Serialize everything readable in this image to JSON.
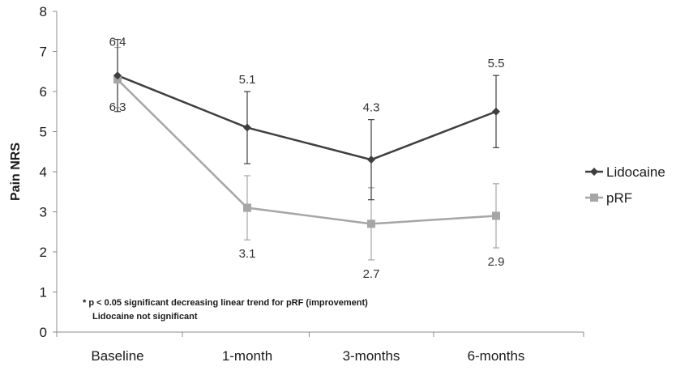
{
  "chart_data": {
    "type": "line",
    "categories": [
      "Baseline",
      "1-month",
      "3-months",
      "6-months"
    ],
    "ylabel": "Pain NRS",
    "xlabel": "",
    "ylim": [
      0,
      8
    ],
    "yticks": [
      0,
      1,
      2,
      3,
      4,
      5,
      6,
      7,
      8
    ],
    "grid": false,
    "legend_position": "right",
    "series": [
      {
        "name": "Lidocaine",
        "values": [
          6.4,
          5.1,
          4.3,
          5.5
        ],
        "error_low": [
          5.5,
          4.2,
          3.3,
          4.6
        ],
        "error_high": [
          7.3,
          6.0,
          5.3,
          6.4
        ],
        "labels": [
          "6.4",
          "5.1",
          "4.3",
          "5.5"
        ],
        "color": "#3f3f3f",
        "marker": "diamond"
      },
      {
        "name": "pRF",
        "values": [
          6.3,
          3.1,
          2.7,
          2.9
        ],
        "error_low": [
          5.6,
          2.3,
          1.8,
          2.1
        ],
        "error_high": [
          7.1,
          3.9,
          3.6,
          3.7
        ],
        "labels": [
          "6.3",
          "3.1",
          "2.7",
          "2.9"
        ],
        "color": "#a6a6a6",
        "marker": "square"
      }
    ],
    "annotations": [
      "* p < 0.05 significant decreasing linear trend for pRF (improvement)",
      "Lidocaine not significant"
    ]
  }
}
